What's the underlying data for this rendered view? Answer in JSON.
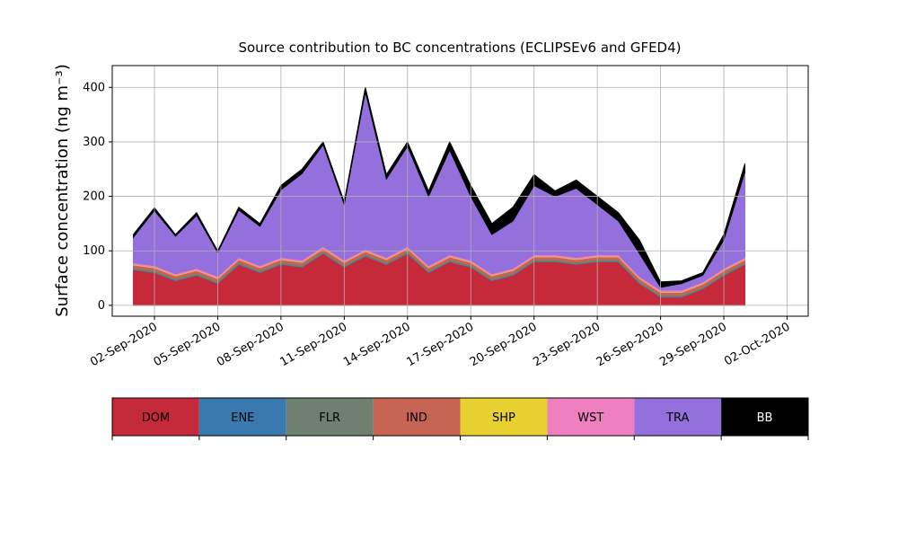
{
  "chart_data": {
    "type": "stacked_area",
    "title": "Source contribution to BC concentrations (ECLIPSEv6 and GFED4)",
    "y_label": "Surface concentration (ng m⁻³)",
    "x": [
      "2020-09-01",
      "2020-09-02",
      "2020-09-03",
      "2020-09-04",
      "2020-09-05",
      "2020-09-06",
      "2020-09-07",
      "2020-09-08",
      "2020-09-09",
      "2020-09-10",
      "2020-09-11",
      "2020-09-12",
      "2020-09-13",
      "2020-09-14",
      "2020-09-15",
      "2020-09-16",
      "2020-09-17",
      "2020-09-18",
      "2020-09-19",
      "2020-09-20",
      "2020-09-21",
      "2020-09-22",
      "2020-09-23",
      "2020-09-24",
      "2020-09-25",
      "2020-09-26",
      "2020-09-27",
      "2020-09-28",
      "2020-09-29",
      "2020-09-30"
    ],
    "series": [
      {
        "name": "DOM",
        "color": "#c62a3a",
        "values": [
          65,
          60,
          45,
          55,
          40,
          75,
          60,
          75,
          70,
          95,
          70,
          90,
          75,
          95,
          60,
          80,
          70,
          45,
          55,
          80,
          80,
          75,
          80,
          80,
          40,
          15,
          15,
          30,
          55,
          75
        ]
      },
      {
        "name": "ENE",
        "color": "#3a78b0",
        "values": [
          1,
          1,
          1,
          1,
          1,
          1,
          1,
          1,
          1,
          1,
          1,
          1,
          1,
          1,
          1,
          1,
          1,
          1,
          1,
          1,
          1,
          1,
          1,
          1,
          1,
          1,
          1,
          1,
          1,
          1
        ]
      },
      {
        "name": "FLR",
        "color": "#6e8070",
        "values": [
          3,
          3,
          3,
          3,
          3,
          3,
          3,
          3,
          3,
          3,
          3,
          3,
          3,
          3,
          3,
          3,
          3,
          3,
          3,
          3,
          3,
          3,
          3,
          3,
          3,
          3,
          3,
          3,
          3,
          3
        ]
      },
      {
        "name": "IND",
        "color": "#c86454",
        "values": [
          5,
          5,
          5,
          5,
          5,
          5,
          5,
          5,
          5,
          5,
          5,
          5,
          5,
          5,
          5,
          5,
          5,
          5,
          5,
          5,
          5,
          5,
          5,
          5,
          5,
          5,
          5,
          5,
          5,
          5
        ]
      },
      {
        "name": "SHP",
        "color": "#e8d030",
        "values": [
          1,
          1,
          1,
          1,
          1,
          1,
          1,
          1,
          1,
          1,
          1,
          1,
          1,
          1,
          1,
          1,
          1,
          1,
          1,
          1,
          1,
          1,
          1,
          1,
          1,
          1,
          1,
          1,
          1,
          1
        ]
      },
      {
        "name": "WST",
        "color": "#f07fbf",
        "values": [
          3,
          3,
          3,
          3,
          3,
          3,
          3,
          3,
          3,
          3,
          3,
          3,
          3,
          3,
          3,
          3,
          3,
          3,
          3,
          3,
          3,
          3,
          3,
          3,
          3,
          3,
          3,
          3,
          3,
          3
        ]
      },
      {
        "name": "TRA",
        "color": "#9370db",
        "values": [
          47,
          101,
          69,
          97,
          44,
          87,
          72,
          124,
          159,
          187,
          102,
          289,
          144,
          184,
          127,
          192,
          117,
          72,
          87,
          127,
          107,
          127,
          92,
          62,
          42,
          5,
          12,
          12,
          52,
          157
        ]
      },
      {
        "name": "BB",
        "color": "#000000",
        "values": [
          5,
          5,
          3,
          5,
          3,
          5,
          5,
          8,
          8,
          5,
          5,
          8,
          8,
          8,
          10,
          15,
          20,
          20,
          25,
          20,
          10,
          15,
          15,
          15,
          25,
          10,
          5,
          5,
          10,
          15
        ]
      }
    ],
    "xlim": [
      "2020-08-31",
      "2020-10-03"
    ],
    "xticks": [
      {
        "value": "2020-09-02",
        "label": "02-Sep-2020"
      },
      {
        "value": "2020-09-05",
        "label": "05-Sep-2020"
      },
      {
        "value": "2020-09-08",
        "label": "08-Sep-2020"
      },
      {
        "value": "2020-09-11",
        "label": "11-Sep-2020"
      },
      {
        "value": "2020-09-14",
        "label": "14-Sep-2020"
      },
      {
        "value": "2020-09-17",
        "label": "17-Sep-2020"
      },
      {
        "value": "2020-09-20",
        "label": "20-Sep-2020"
      },
      {
        "value": "2020-09-23",
        "label": "23-Sep-2020"
      },
      {
        "value": "2020-09-26",
        "label": "26-Sep-2020"
      },
      {
        "value": "2020-09-29",
        "label": "29-Sep-2020"
      },
      {
        "value": "2020-10-02",
        "label": "02-Oct-2020"
      }
    ],
    "ylim": [
      -20,
      440
    ],
    "yticks": [
      0,
      100,
      200,
      300,
      400
    ],
    "grid": true
  }
}
